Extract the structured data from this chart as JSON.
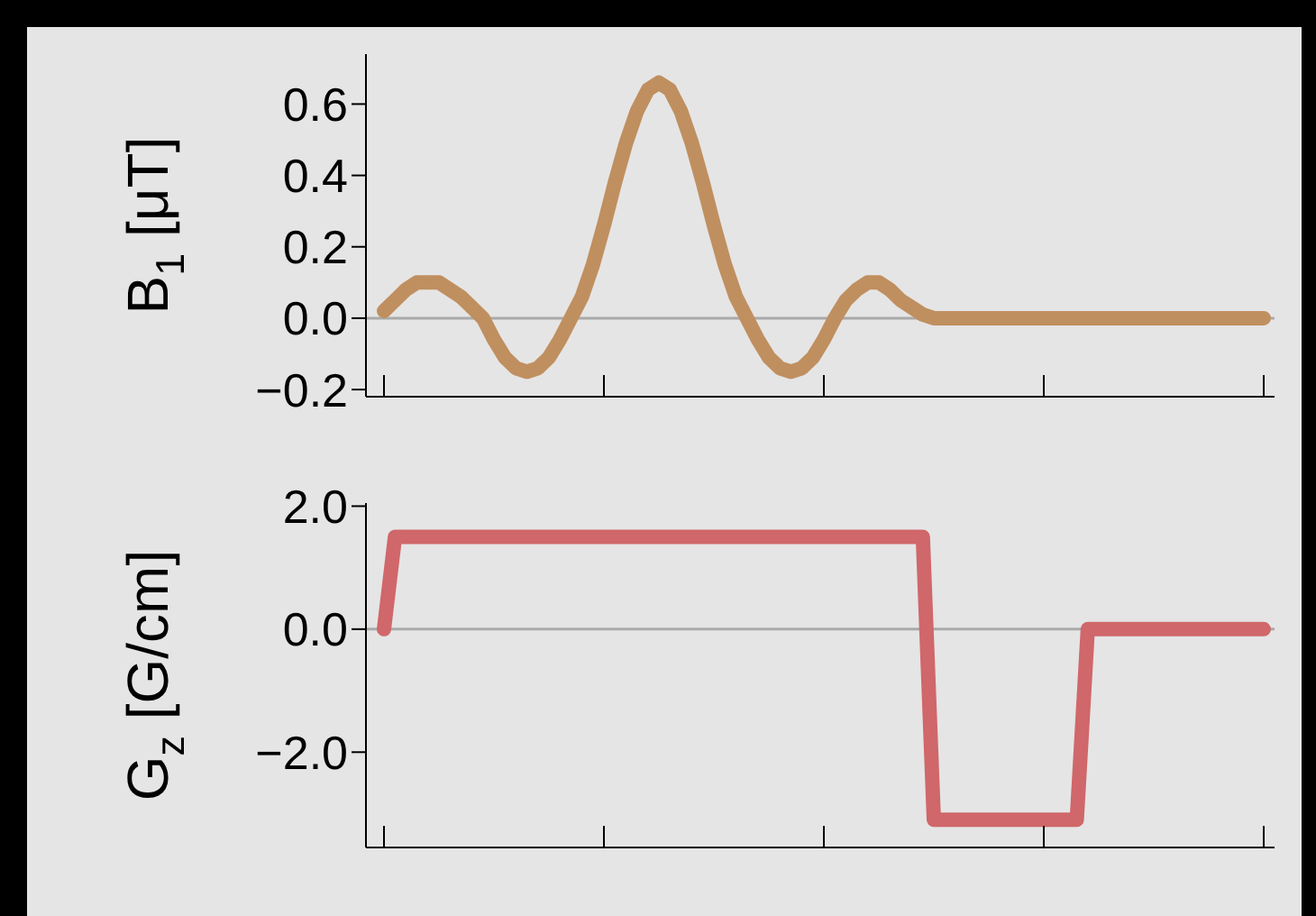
{
  "chart_data": [
    {
      "type": "line",
      "ylabel": "B$_{1}$ [μT]",
      "categories": [
        null,
        null,
        null,
        null,
        null,
        null,
        null,
        null,
        null,
        null,
        null,
        null,
        null,
        null,
        null,
        null,
        null,
        null,
        null,
        null,
        null,
        null,
        null,
        null,
        null,
        null,
        null,
        null,
        null,
        null,
        null,
        null,
        null,
        null,
        null,
        null,
        null,
        null,
        null,
        null,
        null,
        null,
        null,
        null,
        null,
        null,
        null,
        null,
        null,
        null,
        null,
        null,
        null,
        null,
        null,
        null,
        null,
        null,
        null,
        null,
        null,
        null,
        null,
        null,
        null,
        null,
        null,
        null,
        null,
        null,
        null,
        null,
        null,
        null,
        null,
        null,
        null,
        null,
        null,
        null,
        null
      ],
      "ylim": [
        -0.22,
        0.74
      ],
      "yticks": [
        {
          "value": -0.2,
          "label": "−0.2"
        },
        {
          "value": 0,
          "label": "0.0"
        },
        {
          "value": 0.2,
          "label": "0.2"
        },
        {
          "value": 0.4,
          "label": "0.4"
        },
        {
          "value": 0.6,
          "label": "0.6"
        }
      ],
      "tick_labels": "y",
      "grid": false,
      "marker": "none",
      "line_style": "solid",
      "ref_lines": [
        {
          "axis": "y",
          "value": 0,
          "color": "#aaaaaa"
        }
      ],
      "series": [
        {
          "color": "#c08f5f",
          "values": [
            0.02,
            0.05,
            0.08,
            0.1,
            0.1,
            0.1,
            0.08,
            0.06,
            0.03,
            0.0,
            -0.06,
            -0.11,
            -0.14,
            -0.15,
            -0.14,
            -0.11,
            -0.06,
            0.0,
            0.06,
            0.15,
            0.26,
            0.38,
            0.49,
            0.58,
            0.64,
            0.66,
            0.64,
            0.58,
            0.49,
            0.38,
            0.26,
            0.15,
            0.06,
            0.0,
            -0.06,
            -0.11,
            -0.14,
            -0.15,
            -0.14,
            -0.11,
            -0.06,
            0.0,
            0.05,
            0.08,
            0.1,
            0.1,
            0.08,
            0.05,
            0.03,
            0.01,
            0.0,
            0,
            0,
            0,
            0,
            0,
            0,
            0,
            0,
            0,
            0,
            0,
            0,
            0,
            0,
            0,
            0,
            0,
            0,
            0,
            0,
            0,
            0,
            0,
            0,
            0,
            0,
            0,
            0,
            0,
            0
          ]
        }
      ]
    },
    {
      "type": "line",
      "ylabel": "G$_{z}$ [G/cm]",
      "categories": [
        null,
        null,
        null,
        null,
        null,
        null,
        null,
        null,
        null,
        null,
        null,
        null,
        null,
        null,
        null,
        null,
        null,
        null,
        null,
        null,
        null,
        null,
        null,
        null,
        null,
        null,
        null,
        null,
        null,
        null,
        null,
        null,
        null,
        null,
        null,
        null,
        null,
        null,
        null,
        null,
        null,
        null,
        null,
        null,
        null,
        null,
        null,
        null,
        null,
        null,
        null,
        null,
        null,
        null,
        null,
        null,
        null,
        null,
        null,
        null,
        null,
        null,
        null,
        null,
        null,
        null,
        null,
        null,
        null,
        null,
        null,
        null,
        null,
        null,
        null,
        null,
        null,
        null,
        null,
        null,
        null
      ],
      "ylim": [
        -3.55,
        2.05
      ],
      "yticks": [
        {
          "value": -2,
          "label": "−2.0"
        },
        {
          "value": 0,
          "label": "0.0"
        },
        {
          "value": 2,
          "label": "2.0"
        }
      ],
      "tick_labels": "y",
      "grid": false,
      "marker": "none",
      "line_style": "solid",
      "ref_lines": [
        {
          "axis": "y",
          "value": 0,
          "color": "#aaaaaa"
        }
      ],
      "series": [
        {
          "color": "#d0676a",
          "values": [
            0,
            1.5,
            1.5,
            1.5,
            1.5,
            1.5,
            1.5,
            1.5,
            1.5,
            1.5,
            1.5,
            1.5,
            1.5,
            1.5,
            1.5,
            1.5,
            1.5,
            1.5,
            1.5,
            1.5,
            1.5,
            1.5,
            1.5,
            1.5,
            1.5,
            1.5,
            1.5,
            1.5,
            1.5,
            1.5,
            1.5,
            1.5,
            1.5,
            1.5,
            1.5,
            1.5,
            1.5,
            1.5,
            1.5,
            1.5,
            1.5,
            1.5,
            1.5,
            1.5,
            1.5,
            1.5,
            1.5,
            1.5,
            1.5,
            1.5,
            -3.1,
            -3.1,
            -3.1,
            -3.1,
            -3.1,
            -3.1,
            -3.1,
            -3.1,
            -3.1,
            -3.1,
            -3.1,
            -3.1,
            -3.1,
            -3.1,
            0,
            0,
            0,
            0,
            0,
            0,
            0,
            0,
            0,
            0,
            0,
            0,
            0,
            0,
            0,
            0,
            0
          ]
        }
      ]
    }
  ]
}
